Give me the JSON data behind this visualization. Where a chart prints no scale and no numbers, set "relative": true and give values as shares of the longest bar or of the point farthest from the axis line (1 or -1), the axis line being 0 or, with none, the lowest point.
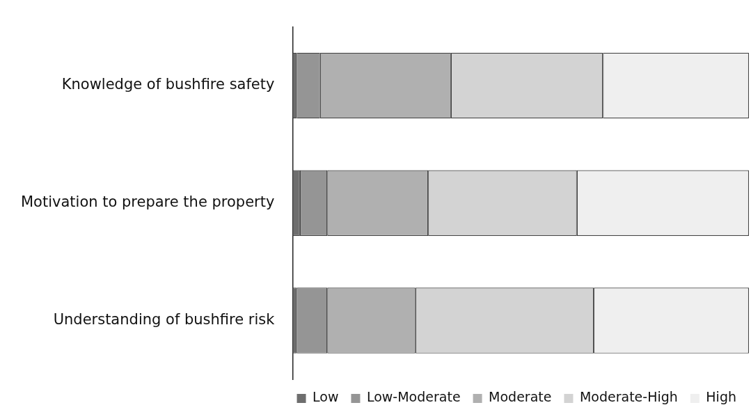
{
  "chart_data": {
    "type": "bar",
    "orientation": "horizontal",
    "stacked": true,
    "relative": true,
    "legend": "bottom",
    "grid": false,
    "categories": [
      "Knowledge of bushfire safety",
      "Motivation to prepare the property",
      "Understanding of bushfire risk"
    ],
    "series": [
      {
        "name": "Low",
        "color": "#6e6e6e",
        "values": [
          0.009,
          0.016,
          0.009
        ]
      },
      {
        "name": "Low-Moderate",
        "color": "#959595",
        "values": [
          0.051,
          0.06,
          0.067
        ]
      },
      {
        "name": "Moderate",
        "color": "#b0b0b0",
        "values": [
          0.287,
          0.221,
          0.193
        ]
      },
      {
        "name": "Moderate-High",
        "color": "#d3d3d3",
        "values": [
          0.333,
          0.326,
          0.391
        ]
      },
      {
        "name": "High",
        "color": "#efefef",
        "values": [
          0.32,
          0.377,
          0.34
        ]
      }
    ]
  }
}
